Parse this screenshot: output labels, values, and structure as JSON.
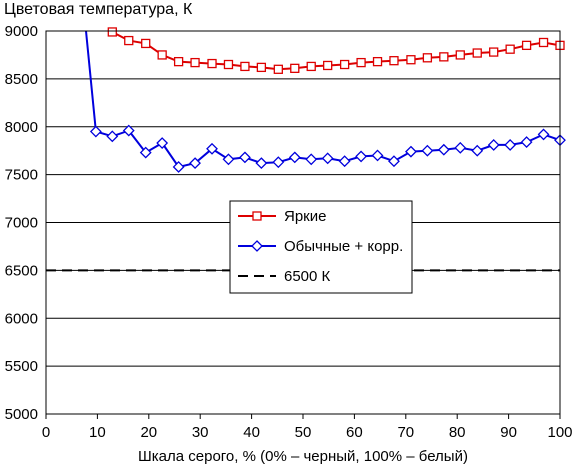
{
  "chart_data": {
    "type": "line",
    "title": "Цветовая температура, К",
    "xlabel": "Шкала серого, % (0% – черный, 100% – белый)",
    "ylabel": "",
    "xlim": [
      0,
      100
    ],
    "ylim": [
      5000,
      9000
    ],
    "x_ticks": [
      "0",
      "10",
      "20",
      "30",
      "40",
      "50",
      "60",
      "70",
      "80",
      "90",
      "100"
    ],
    "y_ticks": [
      "5000",
      "5500",
      "6000",
      "6500",
      "7000",
      "7500",
      "8000",
      "8500",
      "9000"
    ],
    "grid": "horizontal",
    "legend_position": "center",
    "series": [
      {
        "name": "Яркие",
        "color": "#dd0000",
        "marker": "square",
        "x": [
          12.9,
          16.1,
          19.4,
          22.6,
          25.8,
          29.0,
          32.3,
          35.5,
          38.7,
          41.9,
          45.2,
          48.4,
          51.6,
          54.8,
          58.1,
          61.3,
          64.5,
          67.7,
          71.0,
          74.2,
          77.4,
          80.6,
          83.9,
          87.1,
          90.3,
          93.5,
          96.8,
          100.0
        ],
        "values": [
          8990,
          8900,
          8870,
          8750,
          8680,
          8670,
          8660,
          8650,
          8630,
          8620,
          8600,
          8610,
          8630,
          8640,
          8650,
          8670,
          8680,
          8690,
          8700,
          8720,
          8730,
          8750,
          8770,
          8780,
          8810,
          8850,
          8880,
          8850
        ]
      },
      {
        "name": "Обычные + корр.",
        "color": "#0000dd",
        "marker": "diamond",
        "x": [
          6.5,
          9.7,
          12.9,
          16.1,
          19.4,
          22.6,
          25.8,
          29.0,
          32.3,
          35.5,
          38.7,
          41.9,
          45.2,
          48.4,
          51.6,
          54.8,
          58.1,
          61.3,
          64.5,
          67.7,
          71.0,
          74.2,
          77.4,
          80.6,
          83.9,
          87.1,
          90.3,
          93.5,
          96.8,
          100.0
        ],
        "values": [
          9700,
          7950,
          7900,
          7960,
          7730,
          7830,
          7580,
          7620,
          7770,
          7660,
          7680,
          7620,
          7630,
          7680,
          7660,
          7670,
          7640,
          7690,
          7700,
          7640,
          7740,
          7750,
          7760,
          7780,
          7750,
          7810,
          7810,
          7840,
          7920,
          7860
        ]
      },
      {
        "name": "6500 К",
        "color": "#000000",
        "marker": "none",
        "dash": true,
        "x": [
          0,
          100
        ],
        "values": [
          6500,
          6500
        ]
      }
    ]
  }
}
